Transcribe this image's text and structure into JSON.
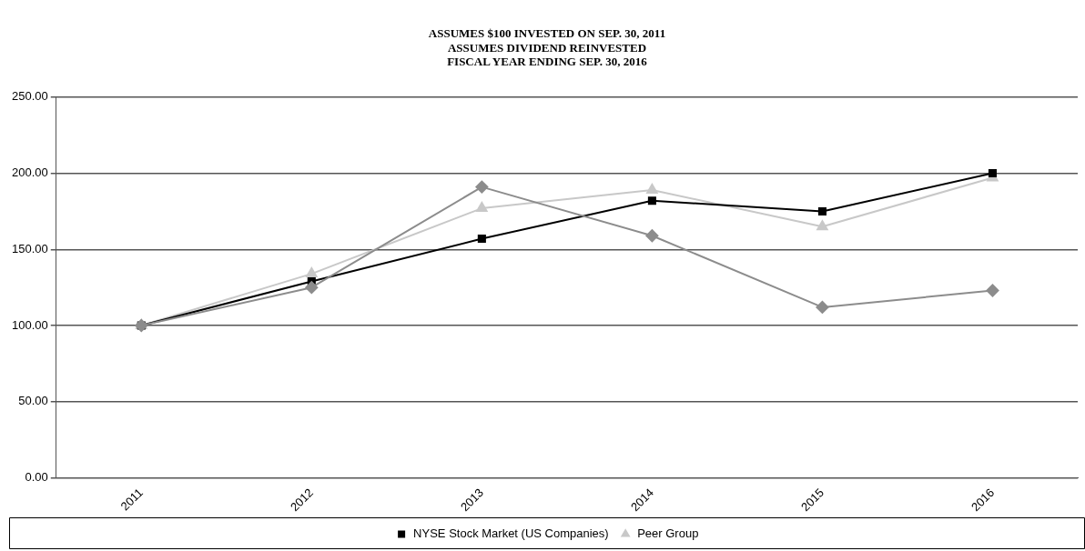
{
  "chart_data": {
    "type": "line",
    "title": "ASSUMES $100 INVESTED ON SEP. 30, 2011\nASSUMES DIVIDEND REINVESTED\nFISCAL YEAR ENDING SEP. 30, 2016",
    "categories": [
      "2011",
      "2012",
      "2013",
      "2014",
      "2015",
      "2016"
    ],
    "series": [
      {
        "color": "#8c8c8c",
        "marker": "diamond",
        "values": [
          100,
          125,
          191,
          159,
          112,
          123
        ]
      },
      {
        "name": "NYSE Stock Market (US Companies)",
        "color": "#000000",
        "marker": "square",
        "values": [
          100,
          129,
          157,
          182,
          175,
          200
        ]
      },
      {
        "name": "Peer Group",
        "color": "#c8c8c8",
        "marker": "triangle",
        "values": [
          100,
          134,
          177,
          189,
          165,
          197
        ]
      }
    ],
    "ylim": [
      0,
      250
    ],
    "yticks": [
      {
        "value": 0,
        "label": "0.00"
      },
      {
        "value": 50,
        "label": "50.00"
      },
      {
        "value": 100,
        "label": "100.00"
      },
      {
        "value": 150,
        "label": "150.00"
      },
      {
        "value": 200,
        "label": "200.00"
      },
      {
        "value": 250,
        "label": "250.00"
      }
    ],
    "grid": "y",
    "legend": "bottom",
    "line_style": "solid"
  }
}
